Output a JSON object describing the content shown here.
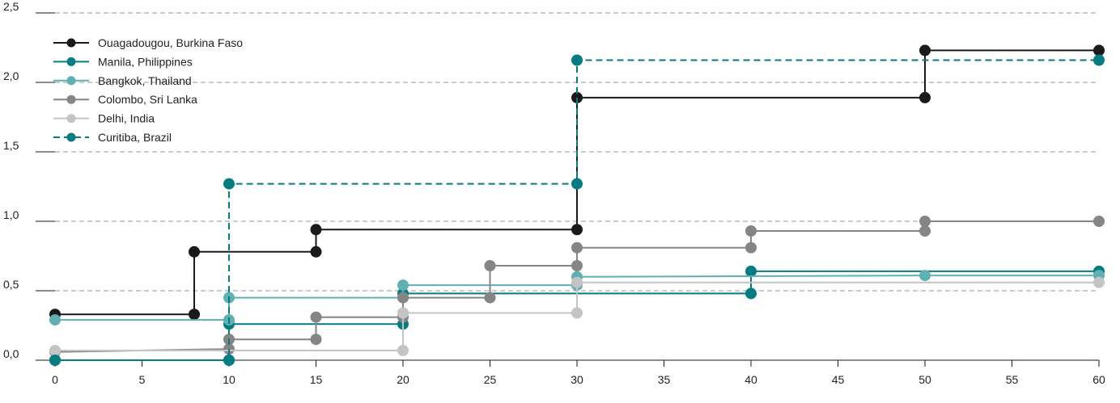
{
  "chart_data": {
    "type": "line",
    "step": true,
    "title": "",
    "xlabel": "",
    "ylabel": "",
    "xlim": [
      0,
      60
    ],
    "ylim": [
      0,
      2.5
    ],
    "x_ticks": [
      0,
      5,
      10,
      15,
      20,
      25,
      30,
      35,
      40,
      45,
      50,
      55,
      60
    ],
    "y_ticks": [
      0.0,
      0.5,
      1.0,
      1.5,
      2.0,
      2.5
    ],
    "y_tick_labels": [
      "0,0",
      "0,5",
      "1,0",
      "1,5",
      "2,0",
      "2,5"
    ],
    "grid": "horizontal dashed",
    "legend": "top-left",
    "series": [
      {
        "name": "Ouagadougou, Burkina Faso",
        "color": "#1a1a1a",
        "dashed": false,
        "points": [
          [
            0,
            0.33
          ],
          [
            8,
            0.33
          ],
          [
            8,
            0.78
          ],
          [
            15,
            0.78
          ],
          [
            15,
            0.94
          ],
          [
            30,
            0.94
          ],
          [
            30,
            1.89
          ],
          [
            50,
            1.89
          ],
          [
            50,
            2.23
          ],
          [
            60,
            2.23
          ]
        ]
      },
      {
        "name": "Manila, Philippines",
        "color": "#047d82",
        "dashed": false,
        "points": [
          [
            0,
            0.0
          ],
          [
            10,
            0.0
          ],
          [
            10,
            0.26
          ],
          [
            20,
            0.26
          ],
          [
            20,
            0.48
          ],
          [
            40,
            0.48
          ],
          [
            40,
            0.64
          ],
          [
            60,
            0.64
          ]
        ]
      },
      {
        "name": "Bangkok, Thailand",
        "color": "#5fb0b3",
        "dashed": false,
        "points": [
          [
            0,
            0.29
          ],
          [
            10,
            0.29
          ],
          [
            10,
            0.45
          ],
          [
            20,
            0.45
          ],
          [
            20,
            0.54
          ],
          [
            30,
            0.54
          ],
          [
            30,
            0.6
          ],
          [
            50,
            0.61
          ],
          [
            60,
            0.61
          ]
        ]
      },
      {
        "name": "Colombo, Sri Lanka",
        "color": "#858585",
        "dashed": false,
        "points": [
          [
            0,
            0.06
          ],
          [
            10,
            0.08
          ],
          [
            10,
            0.15
          ],
          [
            15,
            0.15
          ],
          [
            15,
            0.31
          ],
          [
            20,
            0.31
          ],
          [
            20,
            0.45
          ],
          [
            25,
            0.45
          ],
          [
            25,
            0.68
          ],
          [
            30,
            0.68
          ],
          [
            30,
            0.81
          ],
          [
            40,
            0.81
          ],
          [
            40,
            0.93
          ],
          [
            50,
            0.93
          ],
          [
            50,
            1.0
          ],
          [
            60,
            1.0
          ]
        ]
      },
      {
        "name": "Delhi, India",
        "color": "#c4c4c4",
        "dashed": false,
        "points": [
          [
            0,
            0.07
          ],
          [
            20,
            0.07
          ],
          [
            20,
            0.34
          ],
          [
            30,
            0.34
          ],
          [
            30,
            0.56
          ],
          [
            60,
            0.56
          ]
        ]
      },
      {
        "name": "Curitiba, Brazil",
        "color": "#047d82",
        "dashed": true,
        "points": [
          [
            0,
            0.0
          ],
          [
            10,
            0.0
          ],
          [
            10,
            1.27
          ],
          [
            30,
            1.27
          ],
          [
            30,
            2.16
          ],
          [
            60,
            2.16
          ]
        ]
      }
    ]
  }
}
